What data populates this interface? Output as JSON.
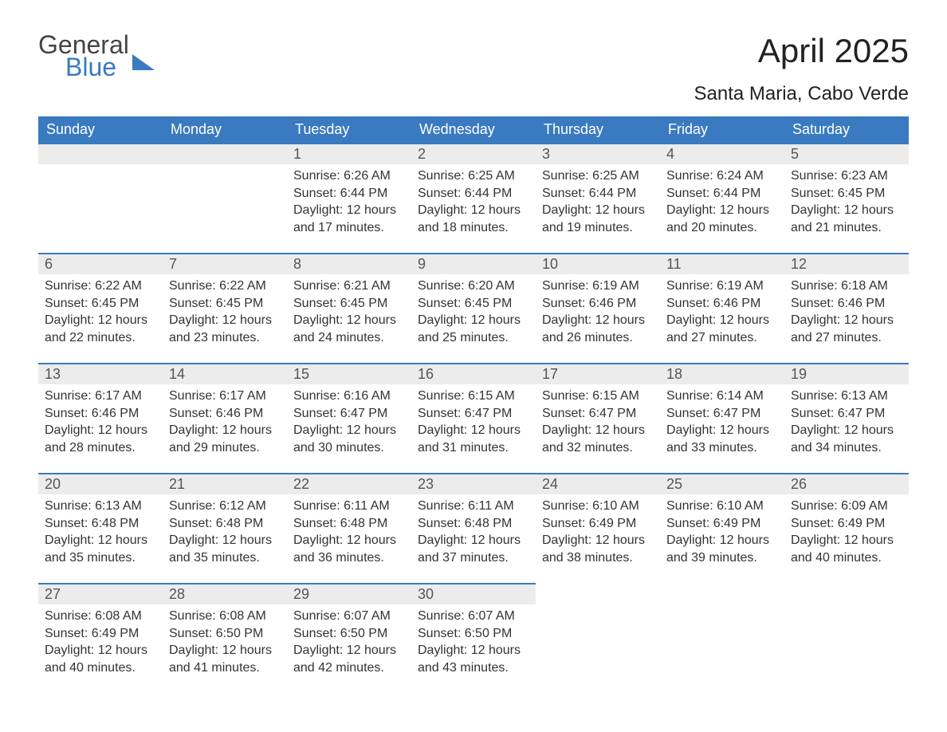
{
  "brand": {
    "word1": "General",
    "word2": "Blue",
    "shape_color": "#3a7ac0"
  },
  "title": "April 2025",
  "subtitle": "Santa Maria, Cabo Verde",
  "colors": {
    "header_bg": "#3a7ac0",
    "header_text": "#ffffff",
    "daynum_bg": "#ececec",
    "daynum_border": "#3a7ac0",
    "body_text": "#333333",
    "page_bg": "#ffffff"
  },
  "fonts": {
    "title_size_pt": 32,
    "subtitle_size_pt": 18,
    "header_size_pt": 14,
    "daynum_size_pt": 14,
    "body_size_pt": 12
  },
  "weekdays": [
    "Sunday",
    "Monday",
    "Tuesday",
    "Wednesday",
    "Thursday",
    "Friday",
    "Saturday"
  ],
  "labels": {
    "sunrise": "Sunrise:",
    "sunset": "Sunset:",
    "daylight": "Daylight:"
  },
  "month_start_weekday": 2,
  "days": [
    {
      "n": 1,
      "sunrise": "6:26 AM",
      "sunset": "6:44 PM",
      "daylight": "12 hours and 17 minutes."
    },
    {
      "n": 2,
      "sunrise": "6:25 AM",
      "sunset": "6:44 PM",
      "daylight": "12 hours and 18 minutes."
    },
    {
      "n": 3,
      "sunrise": "6:25 AM",
      "sunset": "6:44 PM",
      "daylight": "12 hours and 19 minutes."
    },
    {
      "n": 4,
      "sunrise": "6:24 AM",
      "sunset": "6:44 PM",
      "daylight": "12 hours and 20 minutes."
    },
    {
      "n": 5,
      "sunrise": "6:23 AM",
      "sunset": "6:45 PM",
      "daylight": "12 hours and 21 minutes."
    },
    {
      "n": 6,
      "sunrise": "6:22 AM",
      "sunset": "6:45 PM",
      "daylight": "12 hours and 22 minutes."
    },
    {
      "n": 7,
      "sunrise": "6:22 AM",
      "sunset": "6:45 PM",
      "daylight": "12 hours and 23 minutes."
    },
    {
      "n": 8,
      "sunrise": "6:21 AM",
      "sunset": "6:45 PM",
      "daylight": "12 hours and 24 minutes."
    },
    {
      "n": 9,
      "sunrise": "6:20 AM",
      "sunset": "6:45 PM",
      "daylight": "12 hours and 25 minutes."
    },
    {
      "n": 10,
      "sunrise": "6:19 AM",
      "sunset": "6:46 PM",
      "daylight": "12 hours and 26 minutes."
    },
    {
      "n": 11,
      "sunrise": "6:19 AM",
      "sunset": "6:46 PM",
      "daylight": "12 hours and 27 minutes."
    },
    {
      "n": 12,
      "sunrise": "6:18 AM",
      "sunset": "6:46 PM",
      "daylight": "12 hours and 27 minutes."
    },
    {
      "n": 13,
      "sunrise": "6:17 AM",
      "sunset": "6:46 PM",
      "daylight": "12 hours and 28 minutes."
    },
    {
      "n": 14,
      "sunrise": "6:17 AM",
      "sunset": "6:46 PM",
      "daylight": "12 hours and 29 minutes."
    },
    {
      "n": 15,
      "sunrise": "6:16 AM",
      "sunset": "6:47 PM",
      "daylight": "12 hours and 30 minutes."
    },
    {
      "n": 16,
      "sunrise": "6:15 AM",
      "sunset": "6:47 PM",
      "daylight": "12 hours and 31 minutes."
    },
    {
      "n": 17,
      "sunrise": "6:15 AM",
      "sunset": "6:47 PM",
      "daylight": "12 hours and 32 minutes."
    },
    {
      "n": 18,
      "sunrise": "6:14 AM",
      "sunset": "6:47 PM",
      "daylight": "12 hours and 33 minutes."
    },
    {
      "n": 19,
      "sunrise": "6:13 AM",
      "sunset": "6:47 PM",
      "daylight": "12 hours and 34 minutes."
    },
    {
      "n": 20,
      "sunrise": "6:13 AM",
      "sunset": "6:48 PM",
      "daylight": "12 hours and 35 minutes."
    },
    {
      "n": 21,
      "sunrise": "6:12 AM",
      "sunset": "6:48 PM",
      "daylight": "12 hours and 35 minutes."
    },
    {
      "n": 22,
      "sunrise": "6:11 AM",
      "sunset": "6:48 PM",
      "daylight": "12 hours and 36 minutes."
    },
    {
      "n": 23,
      "sunrise": "6:11 AM",
      "sunset": "6:48 PM",
      "daylight": "12 hours and 37 minutes."
    },
    {
      "n": 24,
      "sunrise": "6:10 AM",
      "sunset": "6:49 PM",
      "daylight": "12 hours and 38 minutes."
    },
    {
      "n": 25,
      "sunrise": "6:10 AM",
      "sunset": "6:49 PM",
      "daylight": "12 hours and 39 minutes."
    },
    {
      "n": 26,
      "sunrise": "6:09 AM",
      "sunset": "6:49 PM",
      "daylight": "12 hours and 40 minutes."
    },
    {
      "n": 27,
      "sunrise": "6:08 AM",
      "sunset": "6:49 PM",
      "daylight": "12 hours and 40 minutes."
    },
    {
      "n": 28,
      "sunrise": "6:08 AM",
      "sunset": "6:50 PM",
      "daylight": "12 hours and 41 minutes."
    },
    {
      "n": 29,
      "sunrise": "6:07 AM",
      "sunset": "6:50 PM",
      "daylight": "12 hours and 42 minutes."
    },
    {
      "n": 30,
      "sunrise": "6:07 AM",
      "sunset": "6:50 PM",
      "daylight": "12 hours and 43 minutes."
    }
  ]
}
